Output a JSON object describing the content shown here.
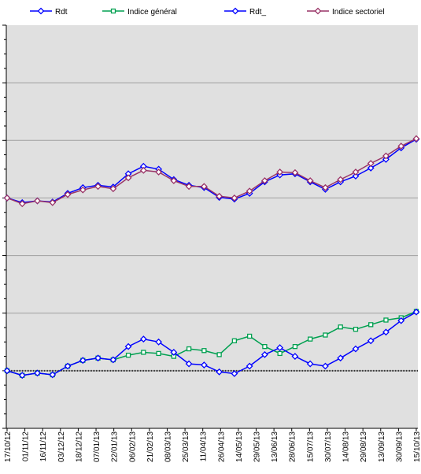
{
  "chart_data": {
    "type": "line",
    "title": "",
    "xlabel": "",
    "ylabel": "",
    "grid": true,
    "legend_position": "top",
    "background": "#e0e0e0",
    "x_ticks": [
      "17/10/12",
      "01/11/12",
      "16/11/12",
      "03/12/12",
      "18/12/12",
      "07/01/13",
      "22/01/13",
      "06/02/13",
      "21/02/13",
      "08/03/13",
      "25/03/13",
      "11/04/13",
      "26/04/13",
      "14/05/13",
      "29/05/13",
      "13/06/13",
      "28/06/13",
      "15/07/13",
      "30/07/13",
      "14/08/13",
      "29/08/13",
      "13/09/13",
      "30/09/13",
      "15/10/13"
    ],
    "ylim": [
      0,
      7
    ],
    "reference_level": 1.0,
    "series": [
      {
        "name": "Rdt",
        "color": "#0000ff",
        "marker": "diamond",
        "values": [
          4.0,
          3.92,
          3.95,
          3.93,
          4.08,
          4.18,
          4.22,
          4.19,
          4.42,
          4.55,
          4.5,
          4.32,
          4.22,
          4.18,
          4.01,
          3.98,
          4.08,
          4.28,
          4.4,
          4.42,
          4.28,
          4.15,
          4.28,
          4.38,
          4.52,
          4.67,
          4.87,
          5.02
        ]
      },
      {
        "name": "Indice général",
        "color": "#00a050",
        "marker": "square",
        "values": [
          1.0,
          0.92,
          0.96,
          0.93,
          1.08,
          1.18,
          1.22,
          1.19,
          1.27,
          1.32,
          1.3,
          1.25,
          1.38,
          1.35,
          1.28,
          1.52,
          1.6,
          1.42,
          1.3,
          1.42,
          1.55,
          1.62,
          1.76,
          1.72,
          1.8,
          1.88,
          1.92,
          2.03
        ]
      },
      {
        "name": "Rdt_",
        "color": "#0000ff",
        "marker": "diamond",
        "values": [
          1.0,
          0.92,
          0.96,
          0.93,
          1.08,
          1.18,
          1.22,
          1.19,
          1.42,
          1.55,
          1.5,
          1.32,
          1.12,
          1.1,
          0.98,
          0.95,
          1.08,
          1.28,
          1.4,
          1.25,
          1.12,
          1.08,
          1.22,
          1.38,
          1.52,
          1.67,
          1.87,
          2.02
        ]
      },
      {
        "name": "Indice sectoriel",
        "color": "#993366",
        "marker": "diamond",
        "values": [
          4.0,
          3.9,
          3.95,
          3.92,
          4.06,
          4.14,
          4.2,
          4.16,
          4.35,
          4.48,
          4.45,
          4.3,
          4.2,
          4.2,
          4.03,
          4.0,
          4.12,
          4.3,
          4.45,
          4.44,
          4.3,
          4.18,
          4.32,
          4.45,
          4.6,
          4.73,
          4.9,
          5.03
        ]
      }
    ]
  }
}
